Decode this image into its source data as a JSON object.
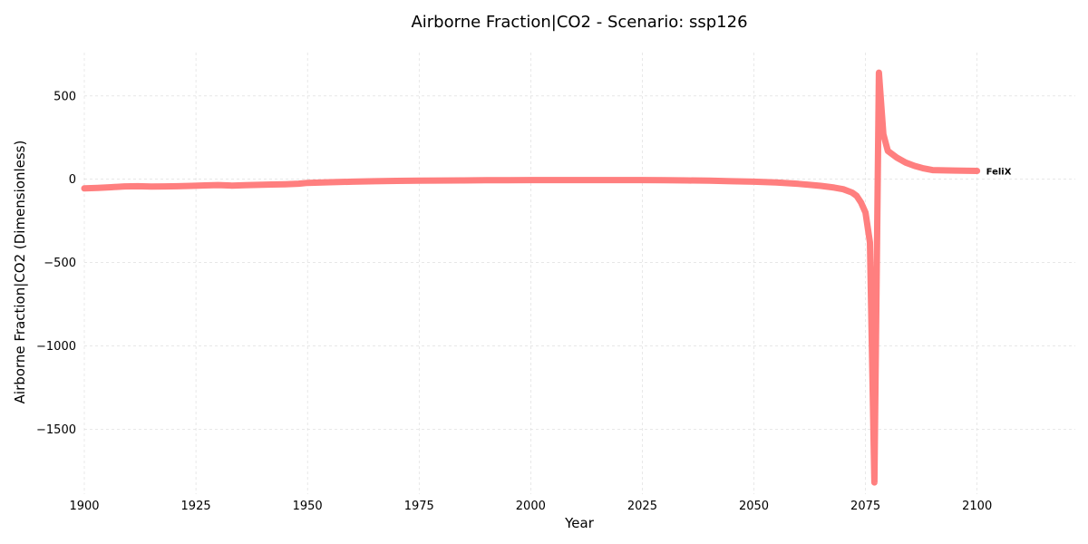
{
  "chart_data": {
    "type": "line",
    "title": "Airborne Fraction|CO2 - Scenario: ssp126",
    "xlabel": "Year",
    "ylabel": "Airborne Fraction|CO2 (Dimensionless)",
    "xlim": [
      1900,
      2122
    ],
    "ylim": [
      -1890,
      760
    ],
    "xticks": [
      1900,
      1925,
      1950,
      1975,
      2000,
      2025,
      2050,
      2075,
      2100
    ],
    "yticks": [
      500,
      0,
      -500,
      -1000,
      -1500
    ],
    "ytick_labels": [
      "500",
      "0",
      "−500",
      "−1000",
      "−1500"
    ],
    "grid": true,
    "legend": "none",
    "series": [
      {
        "name": "FeliX",
        "color": "#ff7f7f",
        "x": [
          1900,
          1903,
          1906,
          1909,
          1912,
          1915,
          1918,
          1921,
          1924,
          1927,
          1930,
          1933,
          1936,
          1939,
          1942,
          1945,
          1948,
          1950,
          1955,
          1960,
          1965,
          1970,
          1975,
          1980,
          1985,
          1990,
          1995,
          2000,
          2005,
          2010,
          2015,
          2020,
          2025,
          2030,
          2035,
          2040,
          2045,
          2050,
          2055,
          2060,
          2065,
          2068,
          2070,
          2072,
          2073,
          2074,
          2075,
          2076,
          2077,
          2078,
          2079,
          2080,
          2082,
          2084,
          2086,
          2088,
          2090,
          2095,
          2100
        ],
        "y": [
          -55,
          -52,
          -48,
          -43,
          -42,
          -44,
          -43,
          -42,
          -40,
          -37,
          -35,
          -38,
          -36,
          -34,
          -32,
          -30,
          -27,
          -22,
          -18,
          -15,
          -12,
          -10,
          -9,
          -8,
          -7,
          -6,
          -6,
          -5,
          -5,
          -5,
          -5,
          -5,
          -5,
          -6,
          -7,
          -9,
          -12,
          -15,
          -20,
          -28,
          -40,
          -50,
          -60,
          -80,
          -100,
          -140,
          -200,
          -380,
          -1820,
          640,
          270,
          170,
          130,
          100,
          80,
          65,
          55,
          52,
          50
        ]
      }
    ]
  }
}
